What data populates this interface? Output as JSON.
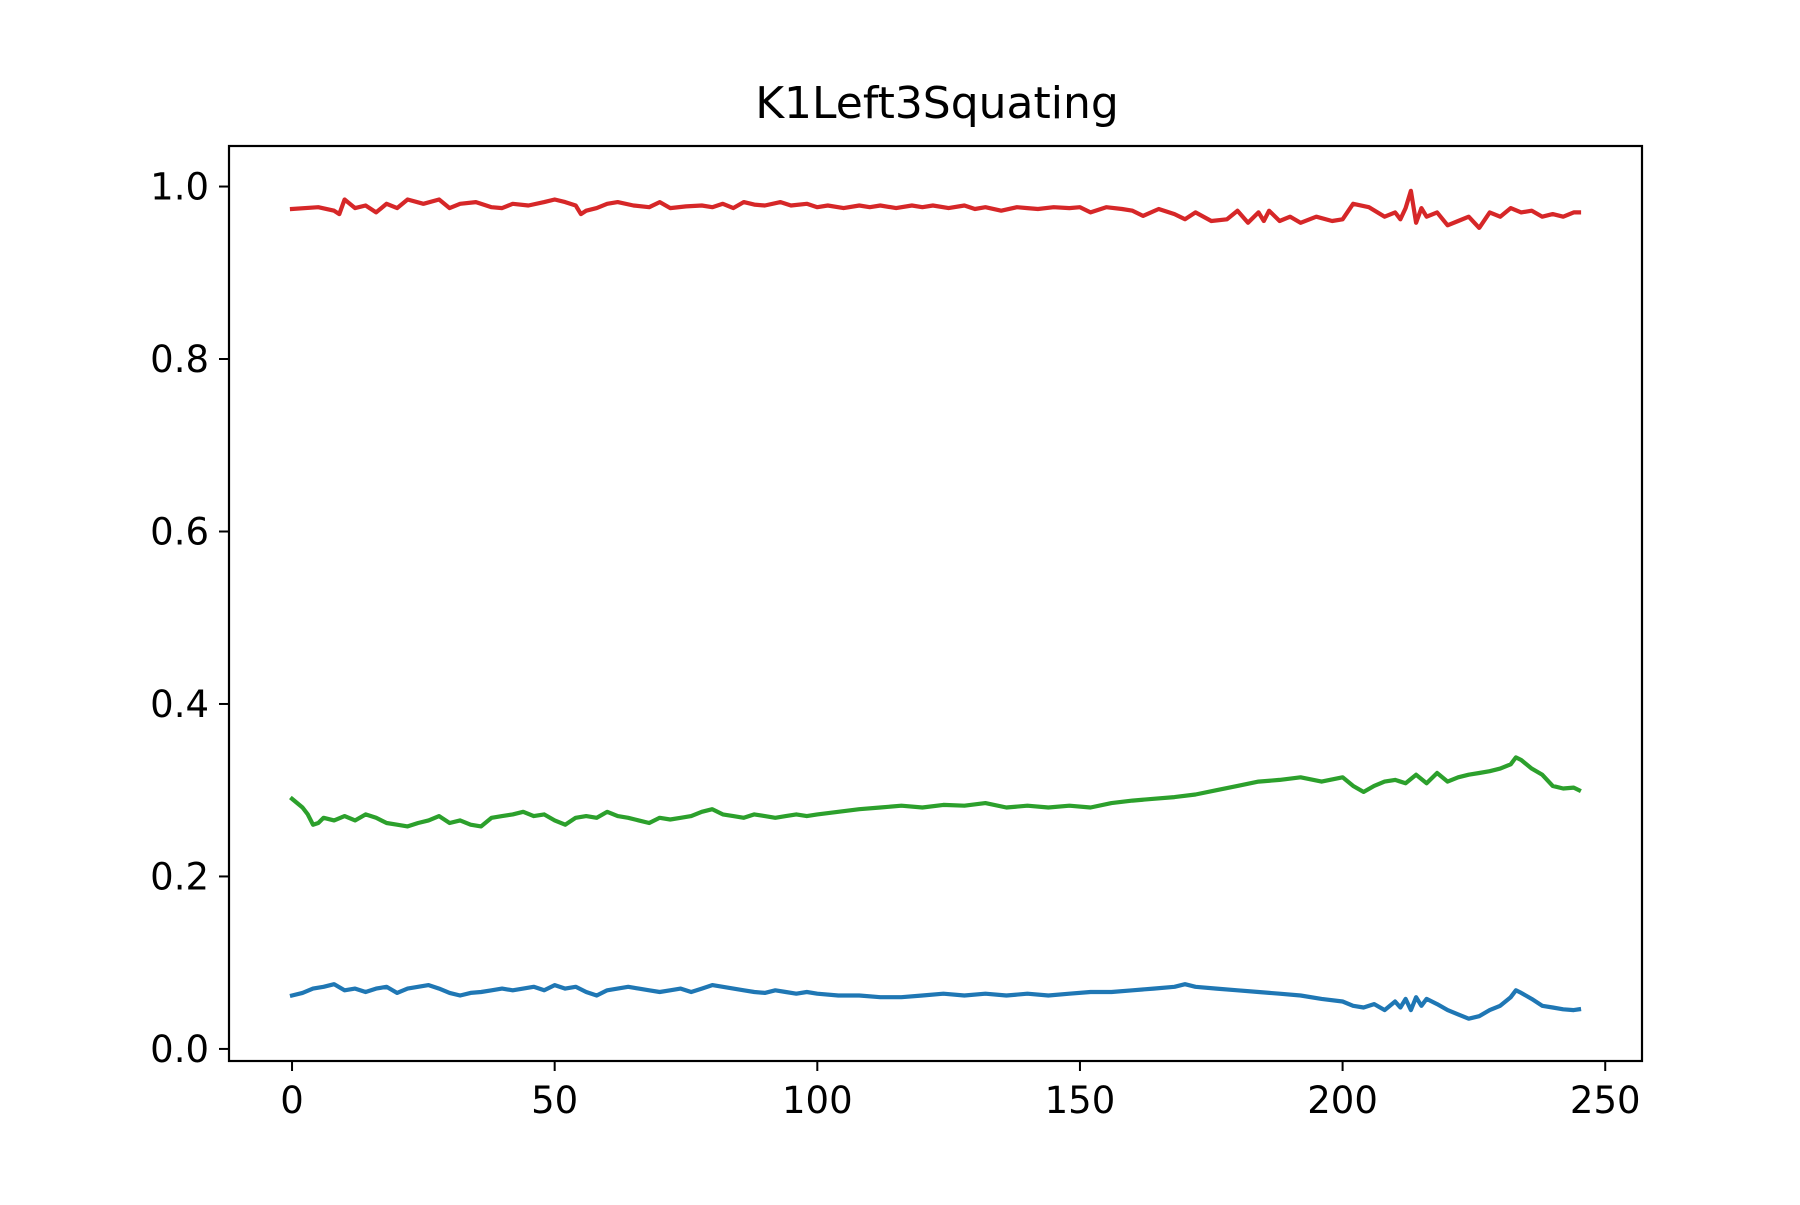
{
  "chart_data": {
    "type": "line",
    "title": "K1Left3Squating",
    "xlabel": "",
    "ylabel": "",
    "xlim": [
      -12,
      257
    ],
    "ylim": [
      -0.014,
      1.047
    ],
    "xticks": [
      0,
      50,
      100,
      150,
      200,
      250
    ],
    "xtick_labels": [
      "0",
      "50",
      "100",
      "150",
      "200",
      "250"
    ],
    "yticks": [
      0.0,
      0.2,
      0.4,
      0.6,
      0.8,
      1.0
    ],
    "ytick_labels": [
      "0.0",
      "0.2",
      "0.4",
      "0.6",
      "0.8",
      "1.0"
    ],
    "grid": false,
    "legend": "none",
    "series": [
      {
        "color": "#d62728",
        "x": [
          0,
          5,
          8,
          9,
          10,
          12,
          14,
          16,
          18,
          20,
          22,
          25,
          28,
          30,
          32,
          35,
          38,
          40,
          42,
          45,
          48,
          50,
          52,
          54,
          55,
          56,
          58,
          60,
          62,
          65,
          68,
          70,
          72,
          75,
          78,
          80,
          82,
          84,
          86,
          88,
          90,
          93,
          95,
          98,
          100,
          102,
          105,
          108,
          110,
          112,
          115,
          118,
          120,
          122,
          125,
          128,
          130,
          132,
          135,
          138,
          140,
          142,
          145,
          148,
          150,
          152,
          155,
          158,
          160,
          162,
          165,
          168,
          170,
          172,
          175,
          178,
          180,
          182,
          184,
          185,
          186,
          188,
          190,
          192,
          195,
          198,
          200,
          202,
          205,
          208,
          210,
          211,
          212,
          213,
          214,
          215,
          216,
          218,
          220,
          222,
          224,
          226,
          228,
          230,
          232,
          234,
          236,
          238,
          240,
          242,
          244,
          245
        ],
        "y": [
          0.974,
          0.976,
          0.972,
          0.968,
          0.985,
          0.975,
          0.978,
          0.97,
          0.98,
          0.975,
          0.985,
          0.98,
          0.985,
          0.975,
          0.98,
          0.982,
          0.976,
          0.975,
          0.98,
          0.978,
          0.982,
          0.985,
          0.982,
          0.978,
          0.968,
          0.972,
          0.975,
          0.98,
          0.982,
          0.978,
          0.976,
          0.982,
          0.975,
          0.977,
          0.978,
          0.976,
          0.98,
          0.975,
          0.982,
          0.979,
          0.978,
          0.982,
          0.978,
          0.98,
          0.976,
          0.978,
          0.975,
          0.978,
          0.976,
          0.978,
          0.975,
          0.978,
          0.976,
          0.978,
          0.975,
          0.978,
          0.974,
          0.976,
          0.972,
          0.976,
          0.975,
          0.974,
          0.976,
          0.975,
          0.976,
          0.97,
          0.976,
          0.974,
          0.972,
          0.966,
          0.974,
          0.968,
          0.962,
          0.97,
          0.96,
          0.962,
          0.972,
          0.958,
          0.97,
          0.96,
          0.972,
          0.96,
          0.965,
          0.958,
          0.965,
          0.96,
          0.962,
          0.98,
          0.976,
          0.965,
          0.97,
          0.962,
          0.975,
          0.995,
          0.958,
          0.975,
          0.965,
          0.97,
          0.955,
          0.96,
          0.965,
          0.952,
          0.97,
          0.965,
          0.975,
          0.97,
          0.972,
          0.965,
          0.968,
          0.965,
          0.97,
          0.97
        ]
      },
      {
        "color": "#2ca02c",
        "x": [
          0,
          2,
          3,
          4,
          5,
          6,
          8,
          10,
          12,
          14,
          16,
          18,
          20,
          22,
          24,
          26,
          28,
          30,
          32,
          34,
          36,
          38,
          40,
          42,
          44,
          46,
          48,
          50,
          52,
          54,
          56,
          58,
          60,
          62,
          64,
          66,
          68,
          70,
          72,
          74,
          76,
          78,
          80,
          82,
          84,
          86,
          88,
          90,
          92,
          94,
          96,
          98,
          100,
          104,
          108,
          112,
          116,
          120,
          124,
          128,
          132,
          136,
          140,
          144,
          148,
          152,
          156,
          160,
          164,
          168,
          172,
          176,
          180,
          184,
          188,
          192,
          196,
          200,
          202,
          204,
          206,
          208,
          210,
          212,
          214,
          216,
          218,
          220,
          222,
          224,
          226,
          228,
          230,
          232,
          233,
          234,
          236,
          238,
          240,
          242,
          244,
          245
        ],
        "y": [
          0.29,
          0.28,
          0.272,
          0.26,
          0.262,
          0.268,
          0.265,
          0.27,
          0.265,
          0.272,
          0.268,
          0.262,
          0.26,
          0.258,
          0.262,
          0.265,
          0.27,
          0.262,
          0.265,
          0.26,
          0.258,
          0.268,
          0.27,
          0.272,
          0.275,
          0.27,
          0.272,
          0.265,
          0.26,
          0.268,
          0.27,
          0.268,
          0.275,
          0.27,
          0.268,
          0.265,
          0.262,
          0.268,
          0.266,
          0.268,
          0.27,
          0.275,
          0.278,
          0.272,
          0.27,
          0.268,
          0.272,
          0.27,
          0.268,
          0.27,
          0.272,
          0.27,
          0.272,
          0.275,
          0.278,
          0.28,
          0.282,
          0.28,
          0.283,
          0.282,
          0.285,
          0.28,
          0.282,
          0.28,
          0.282,
          0.28,
          0.285,
          0.288,
          0.29,
          0.292,
          0.295,
          0.3,
          0.305,
          0.31,
          0.312,
          0.315,
          0.31,
          0.315,
          0.305,
          0.298,
          0.305,
          0.31,
          0.312,
          0.308,
          0.318,
          0.308,
          0.32,
          0.31,
          0.315,
          0.318,
          0.32,
          0.322,
          0.325,
          0.33,
          0.338,
          0.335,
          0.325,
          0.318,
          0.305,
          0.302,
          0.303,
          0.3
        ]
      },
      {
        "color": "#1f77b4",
        "x": [
          0,
          2,
          4,
          6,
          8,
          10,
          12,
          14,
          16,
          18,
          20,
          22,
          24,
          26,
          28,
          30,
          32,
          34,
          36,
          38,
          40,
          42,
          44,
          46,
          48,
          50,
          52,
          54,
          56,
          58,
          60,
          62,
          64,
          66,
          68,
          70,
          72,
          74,
          76,
          78,
          80,
          82,
          84,
          86,
          88,
          90,
          92,
          94,
          96,
          98,
          100,
          104,
          108,
          112,
          116,
          120,
          124,
          128,
          132,
          136,
          140,
          144,
          148,
          152,
          156,
          160,
          164,
          168,
          170,
          172,
          176,
          180,
          184,
          188,
          192,
          196,
          200,
          202,
          204,
          206,
          208,
          210,
          211,
          212,
          213,
          214,
          215,
          216,
          218,
          220,
          222,
          224,
          226,
          228,
          230,
          232,
          233,
          234,
          236,
          238,
          240,
          242,
          244,
          245
        ],
        "y": [
          0.062,
          0.065,
          0.07,
          0.072,
          0.075,
          0.068,
          0.07,
          0.066,
          0.07,
          0.072,
          0.065,
          0.07,
          0.072,
          0.074,
          0.07,
          0.065,
          0.062,
          0.065,
          0.066,
          0.068,
          0.07,
          0.068,
          0.07,
          0.072,
          0.068,
          0.074,
          0.07,
          0.072,
          0.066,
          0.062,
          0.068,
          0.07,
          0.072,
          0.07,
          0.068,
          0.066,
          0.068,
          0.07,
          0.066,
          0.07,
          0.074,
          0.072,
          0.07,
          0.068,
          0.066,
          0.065,
          0.068,
          0.066,
          0.064,
          0.066,
          0.064,
          0.062,
          0.062,
          0.06,
          0.06,
          0.062,
          0.064,
          0.062,
          0.064,
          0.062,
          0.064,
          0.062,
          0.064,
          0.066,
          0.066,
          0.068,
          0.07,
          0.072,
          0.075,
          0.072,
          0.07,
          0.068,
          0.066,
          0.064,
          0.062,
          0.058,
          0.055,
          0.05,
          0.048,
          0.052,
          0.045,
          0.055,
          0.048,
          0.058,
          0.045,
          0.06,
          0.05,
          0.058,
          0.052,
          0.045,
          0.04,
          0.035,
          0.038,
          0.045,
          0.05,
          0.06,
          0.068,
          0.065,
          0.058,
          0.05,
          0.048,
          0.046,
          0.045,
          0.046
        ]
      }
    ]
  }
}
